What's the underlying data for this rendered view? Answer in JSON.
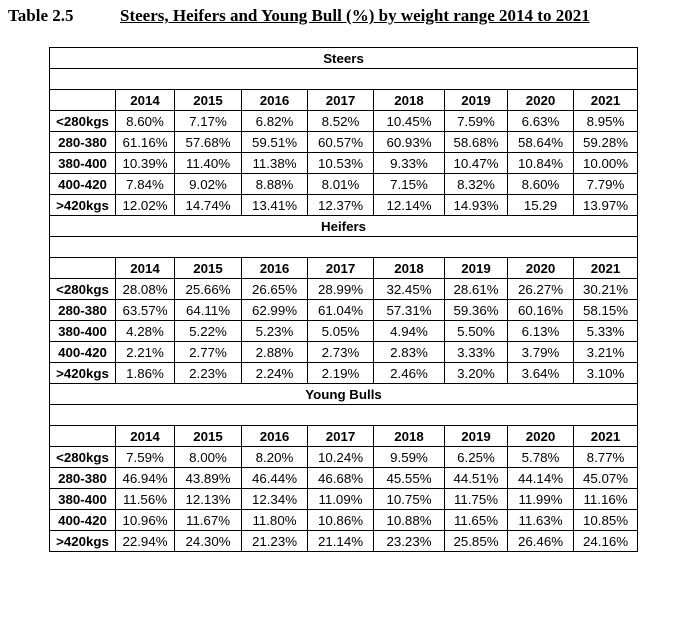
{
  "caption": {
    "table_number": "Table 2.5",
    "title": "Steers, Heifers and Young Bull (%) by weight range 2014 to 2021"
  },
  "years": [
    "2014",
    "2015",
    "2016",
    "2017",
    "2018",
    "2019",
    "2020",
    "2021"
  ],
  "sections": [
    {
      "name": "Steers",
      "rows": [
        {
          "label": "<280kgs",
          "values": [
            "8.60%",
            "7.17%",
            "6.82%",
            "8.52%",
            "10.45%",
            "7.59%",
            "6.63%",
            "8.95%"
          ]
        },
        {
          "label": "280-380",
          "values": [
            "61.16%",
            "57.68%",
            "59.51%",
            "60.57%",
            "60.93%",
            "58.68%",
            "58.64%",
            "59.28%"
          ]
        },
        {
          "label": "380-400",
          "values": [
            "10.39%",
            "11.40%",
            "11.38%",
            "10.53%",
            "9.33%",
            "10.47%",
            "10.84%",
            "10.00%"
          ]
        },
        {
          "label": "400-420",
          "values": [
            "7.84%",
            "9.02%",
            "8.88%",
            "8.01%",
            "7.15%",
            "8.32%",
            "8.60%",
            "7.79%"
          ]
        },
        {
          "label": ">420kgs",
          "values": [
            "12.02%",
            "14.74%",
            "13.41%",
            "12.37%",
            "12.14%",
            "14.93%",
            "15.29",
            "13.97%"
          ]
        }
      ]
    },
    {
      "name": "Heifers",
      "rows": [
        {
          "label": "<280kgs",
          "values": [
            "28.08%",
            "25.66%",
            "26.65%",
            "28.99%",
            "32.45%",
            "28.61%",
            "26.27%",
            "30.21%"
          ]
        },
        {
          "label": "280-380",
          "values": [
            "63.57%",
            "64.11%",
            "62.99%",
            "61.04%",
            "57.31%",
            "59.36%",
            "60.16%",
            "58.15%"
          ]
        },
        {
          "label": "380-400",
          "values": [
            "4.28%",
            "5.22%",
            "5.23%",
            "5.05%",
            "4.94%",
            "5.50%",
            "6.13%",
            "5.33%"
          ]
        },
        {
          "label": "400-420",
          "values": [
            "2.21%",
            "2.77%",
            "2.88%",
            "2.73%",
            "2.83%",
            "3.33%",
            "3.79%",
            "3.21%"
          ]
        },
        {
          "label": ">420kgs",
          "values": [
            "1.86%",
            "2.23%",
            "2.24%",
            "2.19%",
            "2.46%",
            "3.20%",
            "3.64%",
            "3.10%"
          ]
        }
      ]
    },
    {
      "name": "Young Bulls",
      "rows": [
        {
          "label": "<280kgs",
          "values": [
            "7.59%",
            "8.00%",
            "8.20%",
            "10.24%",
            "9.59%",
            "6.25%",
            "5.78%",
            "8.77%"
          ]
        },
        {
          "label": "280-380",
          "values": [
            "46.94%",
            "43.89%",
            "46.44%",
            "46.68%",
            "45.55%",
            "44.51%",
            "44.14%",
            "45.07%"
          ]
        },
        {
          "label": "380-400",
          "values": [
            "11.56%",
            "12.13%",
            "12.34%",
            "11.09%",
            "10.75%",
            "11.75%",
            "11.99%",
            "11.16%"
          ]
        },
        {
          "label": "400-420",
          "values": [
            "10.96%",
            "11.67%",
            "11.80%",
            "10.86%",
            "10.88%",
            "11.65%",
            "11.63%",
            "10.85%"
          ]
        },
        {
          "label": ">420kgs",
          "values": [
            "22.94%",
            "24.30%",
            "21.23%",
            "21.14%",
            "23.23%",
            "25.85%",
            "26.46%",
            "24.16%"
          ]
        }
      ]
    }
  ]
}
